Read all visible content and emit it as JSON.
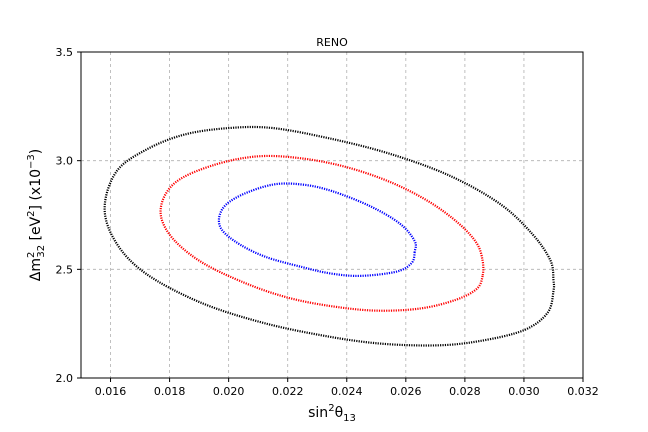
{
  "chart_data": {
    "type": "line",
    "title": "RENO",
    "xlabel_base": "sin",
    "xlabel_sup": "2",
    "xlabel_theta": "θ",
    "xlabel_sub": "13",
    "ylabel_pre": "Δm",
    "ylabel_sup": "2",
    "ylabel_sub": "32",
    "ylabel_mid": " [eV",
    "ylabel_mid_sup": "2",
    "ylabel_post": "] (x10",
    "ylabel_post_sup": "−3",
    "ylabel_end": ")",
    "xlim": [
      0.015,
      0.032
    ],
    "ylim": [
      2.0,
      3.5
    ],
    "xticks": [
      0.016,
      0.018,
      0.02,
      0.022,
      0.024,
      0.026,
      0.028,
      0.03,
      0.032
    ],
    "xtick_labels": [
      "0.016",
      "0.018",
      "0.020",
      "0.022",
      "0.024",
      "0.026",
      "0.028",
      "0.030",
      "0.032"
    ],
    "yticks": [
      2.0,
      2.5,
      3.0,
      3.5
    ],
    "ytick_labels": [
      "2.0",
      "2.5",
      "3.0",
      "3.5"
    ],
    "grid": true,
    "series": [
      {
        "color": "#0000ff",
        "points": [
          [
            0.0263,
            2.58
          ],
          [
            0.0262,
            2.53
          ],
          [
            0.0257,
            2.49
          ],
          [
            0.0245,
            2.47
          ],
          [
            0.0235,
            2.48
          ],
          [
            0.0225,
            2.51
          ],
          [
            0.0212,
            2.56
          ],
          [
            0.0202,
            2.63
          ],
          [
            0.0197,
            2.7
          ],
          [
            0.0198,
            2.78
          ],
          [
            0.0204,
            2.84
          ],
          [
            0.0215,
            2.89
          ],
          [
            0.0225,
            2.89
          ],
          [
            0.0235,
            2.86
          ],
          [
            0.0248,
            2.79
          ],
          [
            0.0258,
            2.71
          ],
          [
            0.0263,
            2.63
          ],
          [
            0.0263,
            2.58
          ]
        ]
      },
      {
        "color": "#ff0000",
        "points": [
          [
            0.0286,
            2.47
          ],
          [
            0.0284,
            2.41
          ],
          [
            0.0277,
            2.36
          ],
          [
            0.0265,
            2.32
          ],
          [
            0.025,
            2.31
          ],
          [
            0.0235,
            2.33
          ],
          [
            0.022,
            2.37
          ],
          [
            0.0205,
            2.44
          ],
          [
            0.019,
            2.54
          ],
          [
            0.018,
            2.66
          ],
          [
            0.0177,
            2.78
          ],
          [
            0.0182,
            2.9
          ],
          [
            0.0195,
            2.98
          ],
          [
            0.021,
            3.02
          ],
          [
            0.0225,
            3.01
          ],
          [
            0.024,
            2.97
          ],
          [
            0.0255,
            2.9
          ],
          [
            0.0268,
            2.81
          ],
          [
            0.0278,
            2.71
          ],
          [
            0.0284,
            2.62
          ],
          [
            0.0286,
            2.54
          ],
          [
            0.0286,
            2.47
          ]
        ]
      },
      {
        "color": "#000000",
        "points": [
          [
            0.031,
            2.4
          ],
          [
            0.0308,
            2.3
          ],
          [
            0.03,
            2.22
          ],
          [
            0.0285,
            2.17
          ],
          [
            0.027,
            2.15
          ],
          [
            0.025,
            2.16
          ],
          [
            0.023,
            2.2
          ],
          [
            0.021,
            2.26
          ],
          [
            0.019,
            2.35
          ],
          [
            0.0172,
            2.48
          ],
          [
            0.0162,
            2.62
          ],
          [
            0.0158,
            2.78
          ],
          [
            0.0162,
            2.95
          ],
          [
            0.0172,
            3.05
          ],
          [
            0.0185,
            3.12
          ],
          [
            0.02,
            3.15
          ],
          [
            0.0215,
            3.15
          ],
          [
            0.0235,
            3.1
          ],
          [
            0.0255,
            3.03
          ],
          [
            0.0275,
            2.93
          ],
          [
            0.0292,
            2.8
          ],
          [
            0.0303,
            2.66
          ],
          [
            0.0309,
            2.54
          ],
          [
            0.031,
            2.45
          ],
          [
            0.031,
            2.4
          ]
        ]
      }
    ]
  }
}
